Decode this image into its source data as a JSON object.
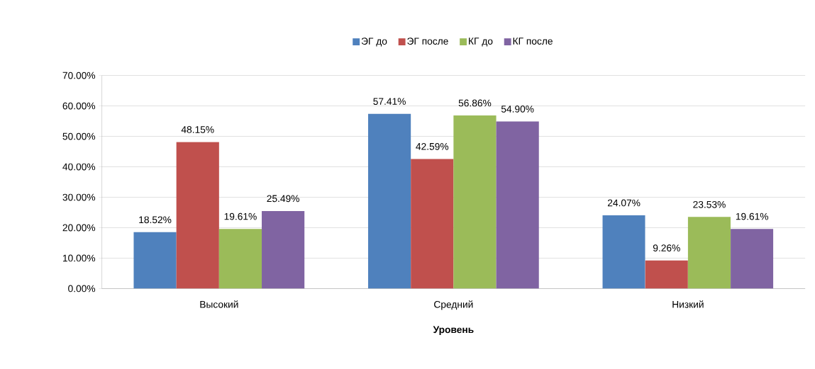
{
  "chart_data": {
    "type": "bar",
    "xlabel": "Уровень",
    "categories": [
      "Высокий",
      "Средний",
      "Низкий"
    ],
    "series": [
      {
        "name": "ЭГ до",
        "color": "#4f81bd",
        "values": [
          18.52,
          57.41,
          24.07
        ],
        "value_labels": [
          "18.52%",
          "57.41%",
          "24.07%"
        ]
      },
      {
        "name": "ЭГ после",
        "color": "#c0504d",
        "values": [
          48.15,
          42.59,
          9.26
        ],
        "value_labels": [
          "48.15%",
          "42.59%",
          "9.26%"
        ]
      },
      {
        "name": "КГ до",
        "color": "#9bbb59",
        "values": [
          19.61,
          56.86,
          23.53
        ],
        "value_labels": [
          "19.61%",
          "56.86%",
          "23.53%"
        ]
      },
      {
        "name": "КГ после",
        "color": "#8064a2",
        "values": [
          25.49,
          54.9,
          19.61
        ],
        "value_labels": [
          "25.49%",
          "54.90%",
          "19.61%"
        ]
      }
    ],
    "ylim": [
      0,
      70
    ],
    "yticks": [
      {
        "value": 0,
        "label": "0.00%"
      },
      {
        "value": 10,
        "label": "10.00%"
      },
      {
        "value": 20,
        "label": "20.00%"
      },
      {
        "value": 30,
        "label": "30.00%"
      },
      {
        "value": 40,
        "label": "40.00%"
      },
      {
        "value": 50,
        "label": "50.00%"
      },
      {
        "value": 60,
        "label": "60.00%"
      },
      {
        "value": 70,
        "label": "70.00%"
      }
    ],
    "grid": "y",
    "legend": "top"
  }
}
